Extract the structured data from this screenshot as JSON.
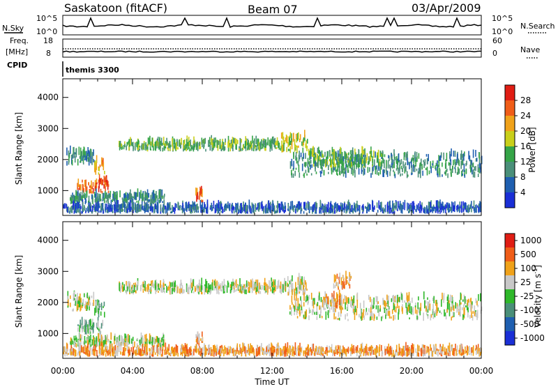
{
  "header": {
    "station": "Saskatoon (fitACF)",
    "beam": "Beam 07",
    "date": "03/Apr/2009"
  },
  "summary_panels": {
    "nsky_label": "N.Sky",
    "nsky_ticks": [
      "10^5",
      "10^0"
    ],
    "nsearch_label": "N.Search",
    "nsearch_ticks": [
      "10^5",
      "10^0"
    ],
    "freq_label_1": "Freq.",
    "freq_label_2": "[MHz]",
    "freq_ticks": [
      "18",
      "8"
    ],
    "nave_label": "Nave",
    "nave_ticks": [
      "60",
      "0"
    ],
    "cpid_label": "CPID",
    "cpid_value": "themis 3300"
  },
  "chart_data": [
    {
      "type": "heatmap",
      "name": "power",
      "ylabel": "Slant Range [km]",
      "ylim": [
        200,
        4600
      ],
      "yticks": [
        "1000",
        "2000",
        "3000",
        "4000"
      ],
      "xlim": [
        0,
        24
      ],
      "colorbar_label": "Power [dB]",
      "colorbar_ticks": [
        "4",
        "8",
        "12",
        "16",
        "20",
        "24",
        "28"
      ],
      "colors": [
        "#1a2fd6",
        "#1f5fb0",
        "#4a8f79",
        "#35a447",
        "#c9cf1a",
        "#f0a21a",
        "#f05d18",
        "#e01d14"
      ],
      "bands": [
        {
          "t": [
            0.2,
            1.8
          ],
          "r": [
            1800,
            2200
          ],
          "level": 2
        },
        {
          "t": [
            0.8,
            2.6
          ],
          "r": [
            900,
            1300
          ],
          "level": 6
        },
        {
          "t": [
            1.8,
            2.4
          ],
          "r": [
            1500,
            1900
          ],
          "level": 5
        },
        {
          "t": [
            0.4,
            5.8
          ],
          "r": [
            550,
            800
          ],
          "level": 2
        },
        {
          "t": [
            3.2,
            7.0
          ],
          "r": [
            2250,
            2500
          ],
          "level": 3
        },
        {
          "t": [
            7.0,
            12.5
          ],
          "r": [
            2250,
            2550
          ],
          "level": 3
        },
        {
          "t": [
            7.6,
            8.0
          ],
          "r": [
            600,
            900
          ],
          "level": 6
        },
        {
          "t": [
            12.5,
            14.0
          ],
          "r": [
            2200,
            2700
          ],
          "level": 4
        },
        {
          "t": [
            13.0,
            24.0
          ],
          "r": [
            1400,
            2100
          ],
          "level": 2
        },
        {
          "t": [
            14.0,
            18.5
          ],
          "r": [
            1700,
            2200
          ],
          "level": 3
        },
        {
          "t": [
            0.0,
            24.0
          ],
          "r": [
            250,
            450
          ],
          "level": 1
        }
      ]
    },
    {
      "type": "heatmap",
      "name": "velocity",
      "ylabel": "Slant Range [km]",
      "ylim": [
        200,
        4600
      ],
      "yticks": [
        "1000",
        "2000",
        "3000",
        "4000"
      ],
      "xlim": [
        0,
        24
      ],
      "colorbar_label": "Velocity [m s^-1]",
      "colorbar_ticks": [
        "1000",
        "500",
        "100",
        "25",
        "-25",
        "-100",
        "-500",
        "-1000"
      ],
      "colors": [
        "#1a2fd6",
        "#1f5fb0",
        "#4a8f79",
        "#2fb82a",
        "#c8c8c8",
        "#f0a21a",
        "#f05d18",
        "#e01d14"
      ],
      "bands": [
        {
          "t": [
            0.2,
            1.8
          ],
          "r": [
            1700,
            2200
          ],
          "level": 4
        },
        {
          "t": [
            0.8,
            2.3
          ],
          "r": [
            950,
            1300
          ],
          "level": 3
        },
        {
          "t": [
            1.8,
            2.4
          ],
          "r": [
            1500,
            1900
          ],
          "level": 3
        },
        {
          "t": [
            0.4,
            5.8
          ],
          "r": [
            550,
            800
          ],
          "level": 4
        },
        {
          "t": [
            3.2,
            12.5
          ],
          "r": [
            2250,
            2550
          ],
          "level": 4
        },
        {
          "t": [
            7.6,
            8.0
          ],
          "r": [
            600,
            900
          ],
          "level": 5
        },
        {
          "t": [
            12.5,
            14.0
          ],
          "r": [
            2200,
            2700
          ],
          "level": 4
        },
        {
          "t": [
            13.0,
            24.0
          ],
          "r": [
            1400,
            2100
          ],
          "level": 4
        },
        {
          "t": [
            15.0,
            16.0
          ],
          "r": [
            1800,
            2200
          ],
          "level": 5
        },
        {
          "t": [
            15.5,
            16.5
          ],
          "r": [
            2400,
            2800
          ],
          "level": 5
        },
        {
          "t": [
            0.0,
            24.0
          ],
          "r": [
            250,
            450
          ],
          "level": 5
        }
      ]
    }
  ],
  "time_axis": {
    "ticks": [
      "00:00",
      "04:00",
      "08:00",
      "12:00",
      "16:00",
      "20:00",
      "00:00"
    ],
    "label": "Time UT"
  }
}
